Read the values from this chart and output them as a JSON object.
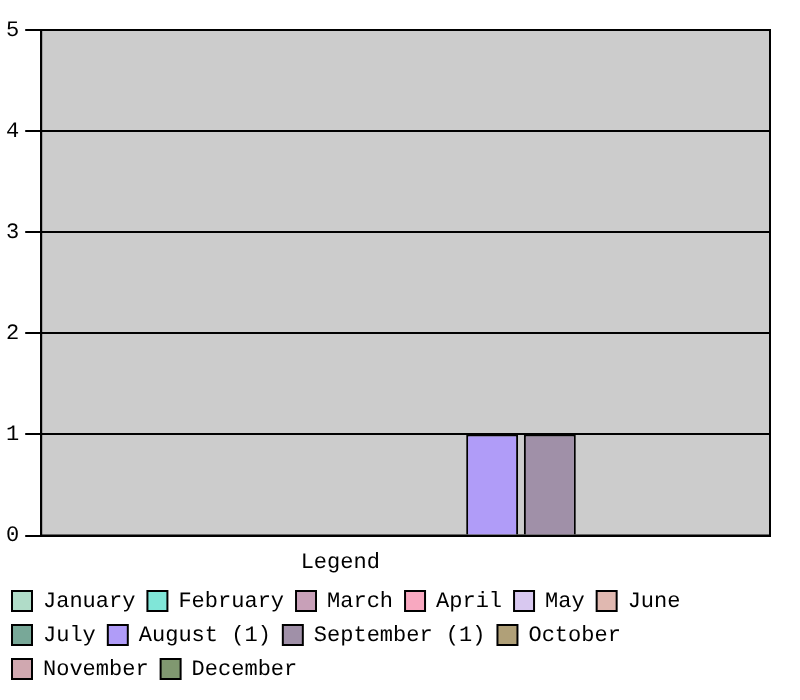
{
  "chart_data": {
    "type": "bar",
    "categories": [
      null
    ],
    "legend_title": "Legend",
    "legend": "bottom",
    "grid": "y",
    "tick_labels": "y",
    "ylim": [
      0,
      5
    ],
    "yticks": [
      0,
      1,
      2,
      3,
      4,
      5
    ],
    "series": [
      {
        "name": "January",
        "color": "#b0dcc8",
        "values": [
          0
        ]
      },
      {
        "name": "February",
        "color": "#80e6d8",
        "values": [
          0
        ]
      },
      {
        "name": "March",
        "color": "#c8a0b8",
        "values": [
          0
        ]
      },
      {
        "name": "April",
        "color": "#f8a8c0",
        "values": [
          0
        ]
      },
      {
        "name": "May",
        "color": "#d8c8f0",
        "values": [
          0
        ]
      },
      {
        "name": "June",
        "color": "#e0b8b0",
        "values": [
          0
        ]
      },
      {
        "name": "July",
        "color": "#78a898",
        "values": [
          0
        ]
      },
      {
        "name": "August (1)",
        "color": "#b09cf8",
        "values": [
          1
        ]
      },
      {
        "name": "September (1)",
        "color": "#a090a8",
        "values": [
          1
        ]
      },
      {
        "name": "October",
        "color": "#b0a078",
        "values": [
          0
        ]
      },
      {
        "name": "November",
        "color": "#d0a8b0",
        "values": [
          0
        ]
      },
      {
        "name": "December",
        "color": "#809870",
        "values": [
          0
        ]
      }
    ]
  }
}
